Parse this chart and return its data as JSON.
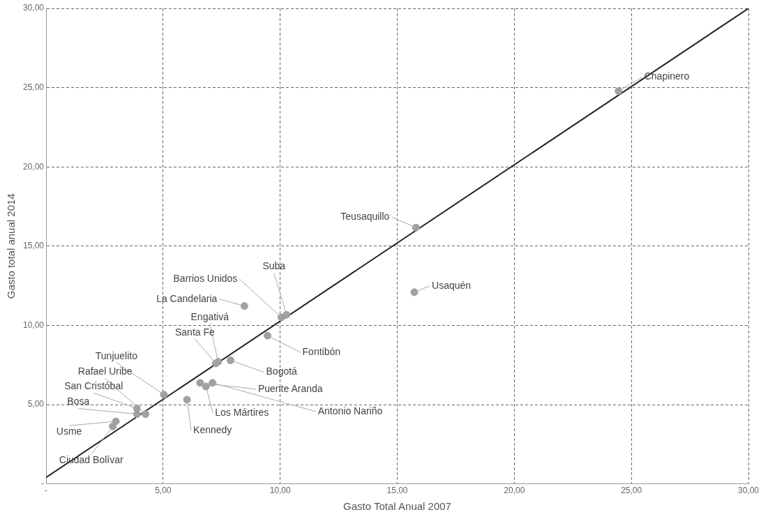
{
  "chart_data": {
    "type": "scatter",
    "xlabel": "Gasto Total Anual 2007",
    "ylabel": "Gasto total anual 2014",
    "xlim": [
      0,
      30
    ],
    "ylim": [
      0,
      30
    ],
    "xticks": [
      {
        "value": 0,
        "label": "-"
      },
      {
        "value": 5,
        "label": "5,00"
      },
      {
        "value": 10,
        "label": "10,00"
      },
      {
        "value": 15,
        "label": "15,00"
      },
      {
        "value": 20,
        "label": "20,00"
      },
      {
        "value": 25,
        "label": "25,00"
      },
      {
        "value": 30,
        "label": "30,00"
      }
    ],
    "yticks": [
      {
        "value": 0,
        "label": "-"
      },
      {
        "value": 5,
        "label": "5,00"
      },
      {
        "value": 10,
        "label": "10,00"
      },
      {
        "value": 15,
        "label": "15,00"
      },
      {
        "value": 20,
        "label": "20,00"
      },
      {
        "value": 25,
        "label": "25,00"
      },
      {
        "value": 30,
        "label": "30,00"
      }
    ],
    "grid": true,
    "legend": false,
    "series": [
      {
        "marker": "circle",
        "color": "#a0a0a0",
        "x": [
          24.45,
          15.8,
          15.73,
          8.47,
          10.05,
          10.27,
          9.46,
          7.35,
          7.25,
          7.88,
          6.58,
          6.83,
          7.11,
          6.02,
          5.03,
          4.25,
          3.88,
          3.88,
          2.98,
          2.85
        ],
        "values": [
          24.78,
          16.17,
          12.09,
          11.22,
          10.5,
          10.67,
          9.35,
          7.7,
          7.6,
          7.79,
          6.37,
          6.14,
          6.37,
          5.31,
          5.63,
          4.4,
          4.76,
          4.4,
          3.94,
          3.62
        ]
      },
      {
        "type": "line",
        "color": "#222222",
        "line_style": "solid",
        "x": [
          0,
          30
        ],
        "values": [
          0.4,
          30
        ]
      }
    ],
    "annotations": [
      {
        "text": "Chapinero",
        "x": 24.45,
        "y": 24.78
      },
      {
        "text": "Teusaquillo",
        "x": 15.8,
        "y": 16.17
      },
      {
        "text": "Usaquén",
        "x": 15.73,
        "y": 12.09
      },
      {
        "text": "La Candelaria",
        "x": 8.47,
        "y": 11.22
      },
      {
        "text": "Barrios Unidos",
        "x": 10.05,
        "y": 10.5
      },
      {
        "text": "Suba",
        "x": 10.27,
        "y": 10.67
      },
      {
        "text": "Fontibón",
        "x": 9.46,
        "y": 9.35
      },
      {
        "text": "Engativá",
        "x": 7.35,
        "y": 7.7
      },
      {
        "text": "Santa Fe",
        "x": 7.25,
        "y": 7.6
      },
      {
        "text": "Bogotá",
        "x": 7.88,
        "y": 7.79
      },
      {
        "text": "Puente Aranda",
        "x": 6.58,
        "y": 6.37
      },
      {
        "text": "Los Mártires",
        "x": 6.83,
        "y": 6.14
      },
      {
        "text": "Antonio Nariño",
        "x": 7.11,
        "y": 6.37
      },
      {
        "text": "Kennedy",
        "x": 6.02,
        "y": 5.31
      },
      {
        "text": "Tunjuelito",
        "x": 5.03,
        "y": 5.63
      },
      {
        "text": "Rafael Uribe",
        "x": 4.25,
        "y": 4.4
      },
      {
        "text": "San Cristóbal",
        "x": 3.88,
        "y": 4.76
      },
      {
        "text": "Bosa",
        "x": 3.88,
        "y": 4.4
      },
      {
        "text": "Usme",
        "x": 2.98,
        "y": 3.94
      },
      {
        "text": "Ciudad Bolívar",
        "x": 2.85,
        "y": 3.62
      }
    ]
  }
}
